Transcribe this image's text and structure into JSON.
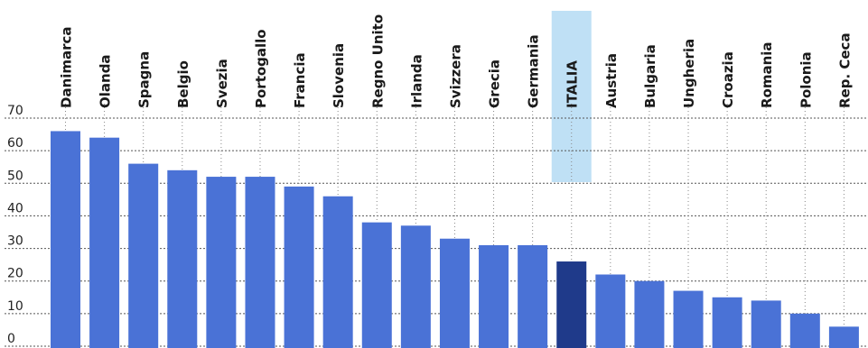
{
  "chart_data": {
    "type": "bar",
    "title": "",
    "xlabel": "",
    "ylabel": "",
    "ylim": [
      0,
      70
    ],
    "yticks": [
      0,
      10,
      20,
      30,
      40,
      50,
      60,
      70
    ],
    "grid": true,
    "legend": "none",
    "categories": [
      "Danimarca",
      "Olanda",
      "Spagna",
      "Belgio",
      "Svezia",
      "Portogallo",
      "Francia",
      "Slovenia",
      "Regno Unito",
      "Irlanda",
      "Svizzera",
      "Grecia",
      "Germania",
      "ITALIA",
      "Austria",
      "Bulgaria",
      "Ungheria",
      "Croazia",
      "Romania",
      "Polonia",
      "Rep. Ceca"
    ],
    "values": [
      66,
      64,
      56,
      54,
      52,
      52,
      49,
      46,
      38,
      37,
      33,
      31,
      31,
      26,
      22,
      20,
      17,
      15,
      14,
      10,
      6
    ],
    "highlight": "ITALIA",
    "colors": {
      "bar": "#4a72d6",
      "highlight_bar": "#1f3a8a",
      "highlight_band": "#bfe0f5"
    }
  }
}
